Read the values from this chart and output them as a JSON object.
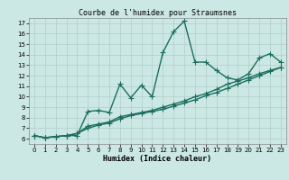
{
  "title": "Courbe de l'humidex pour Straumsnes",
  "xlabel": "Humidex (Indice chaleur)",
  "xlim": [
    -0.5,
    23.5
  ],
  "ylim": [
    5.5,
    17.5
  ],
  "xticks": [
    0,
    1,
    2,
    3,
    4,
    5,
    6,
    7,
    8,
    9,
    10,
    11,
    12,
    13,
    14,
    15,
    16,
    17,
    18,
    19,
    20,
    21,
    22,
    23
  ],
  "yticks": [
    6,
    7,
    8,
    9,
    10,
    11,
    12,
    13,
    14,
    15,
    16,
    17
  ],
  "bg_color": "#cce8e4",
  "grid_color": "#b0ceca",
  "line_color": "#1a6e5e",
  "line1_x": [
    0,
    1,
    2,
    3,
    4,
    5,
    6,
    7,
    8,
    9,
    10,
    11,
    12,
    13,
    14,
    15,
    16,
    17,
    18,
    19,
    20,
    21,
    22,
    23
  ],
  "line1_y": [
    6.3,
    6.1,
    6.2,
    6.3,
    6.3,
    8.6,
    8.7,
    8.5,
    11.2,
    9.9,
    11.1,
    10.0,
    14.2,
    16.2,
    17.2,
    13.3,
    13.3,
    12.5,
    11.8,
    11.6,
    12.2,
    13.7,
    14.1,
    13.3
  ],
  "line2_x": [
    0,
    1,
    2,
    3,
    4,
    5,
    6,
    7,
    8,
    9,
    10,
    11,
    12,
    13,
    14,
    15,
    16,
    17,
    18,
    19,
    20,
    21,
    22,
    23
  ],
  "line2_y": [
    6.3,
    6.1,
    6.2,
    6.3,
    6.5,
    7.2,
    7.4,
    7.6,
    8.1,
    8.3,
    8.5,
    8.7,
    9.0,
    9.3,
    9.6,
    10.0,
    10.3,
    10.7,
    11.2,
    11.5,
    11.8,
    12.2,
    12.5,
    12.8
  ],
  "line3_x": [
    0,
    1,
    2,
    3,
    4,
    5,
    6,
    7,
    8,
    9,
    10,
    11,
    12,
    13,
    14,
    15,
    16,
    17,
    18,
    19,
    20,
    21,
    22,
    23
  ],
  "line3_y": [
    6.3,
    6.1,
    6.2,
    6.3,
    6.5,
    7.0,
    7.3,
    7.5,
    7.9,
    8.2,
    8.4,
    8.6,
    8.8,
    9.1,
    9.4,
    9.7,
    10.1,
    10.4,
    10.8,
    11.2,
    11.6,
    12.0,
    12.4,
    12.8
  ],
  "marker": "+",
  "marker_size": 4,
  "line_width": 1.0,
  "title_fontsize": 6,
  "xlabel_fontsize": 6,
  "tick_fontsize": 5
}
